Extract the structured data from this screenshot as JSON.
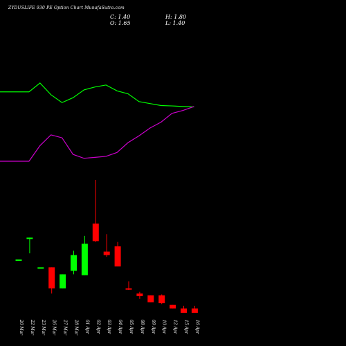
{
  "chart_header": {
    "title": "ZYDUSLIFE 930 PE Option Chart MunafaSutra.com",
    "close_text": "C: 1.40",
    "high_text": "H: 1.80",
    "open_text": "O: 1.65",
    "low_text": "L: 1.40"
  },
  "colors": {
    "background": "#000000",
    "up_candle": "#00ff00",
    "down_candle": "#ff0000",
    "green_line": "#00ff00",
    "purple_line": "#cc00cc",
    "text": "#ffffff"
  },
  "chart_data": {
    "type": "candlestick",
    "categories": [
      "20 Mar",
      "22 Mar",
      "23 Mar",
      "26 Mar",
      "27 Mar",
      "28 Mar",
      "01 Apr",
      "02 Apr",
      "03 Apr",
      "04 Apr",
      "05 Apr",
      "08 Apr",
      "09 Apr",
      "10 Apr",
      "12 Apr",
      "15 Apr",
      "16 Apr"
    ],
    "candles": [
      {
        "date": "20 Mar",
        "open": 4.45,
        "high": 4.45,
        "low": 4.45,
        "close": 4.45
      },
      {
        "date": "22 Mar",
        "open": 5.7,
        "high": 5.7,
        "low": 4.8,
        "close": 5.7
      },
      {
        "date": "23 Mar",
        "open": 4.0,
        "high": 4.0,
        "low": 4.0,
        "close": 4.0
      },
      {
        "date": "26 Mar",
        "open": 4.0,
        "high": 4.0,
        "low": 2.5,
        "close": 2.8
      },
      {
        "date": "27 Mar",
        "open": 2.8,
        "high": 3.6,
        "low": 2.8,
        "close": 3.6
      },
      {
        "date": "28 Mar",
        "open": 3.8,
        "high": 4.95,
        "low": 3.6,
        "close": 4.7
      },
      {
        "date": "01 Apr",
        "open": 3.55,
        "high": 5.8,
        "low": 3.55,
        "close": 5.35
      },
      {
        "date": "02 Apr",
        "open": 6.5,
        "high": 9.0,
        "low": 5.45,
        "close": 5.5
      },
      {
        "date": "03 Apr",
        "open": 4.9,
        "high": 5.9,
        "low": 4.6,
        "close": 4.7
      },
      {
        "date": "04 Apr",
        "open": 5.2,
        "high": 5.45,
        "low": 4.05,
        "close": 4.05
      },
      {
        "date": "05 Apr",
        "open": 2.8,
        "high": 3.2,
        "low": 2.7,
        "close": 2.75
      },
      {
        "date": "08 Apr",
        "open": 2.5,
        "high": 2.6,
        "low": 2.2,
        "close": 2.35
      },
      {
        "date": "09 Apr",
        "open": 2.4,
        "high": 2.4,
        "low": 2.0,
        "close": 2.0
      },
      {
        "date": "10 Apr",
        "open": 2.4,
        "high": 2.45,
        "low": 1.9,
        "close": 1.95
      },
      {
        "date": "12 Apr",
        "open": 1.85,
        "high": 1.85,
        "low": 1.65,
        "close": 1.65
      },
      {
        "date": "15 Apr",
        "open": 1.65,
        "high": 1.8,
        "low": 1.4,
        "close": 1.4
      },
      {
        "date": "16 Apr",
        "open": 1.65,
        "high": 1.8,
        "low": 1.4,
        "close": 1.4
      }
    ],
    "lines": [
      {
        "color": "green",
        "values": [
          3.15,
          3.15,
          3.6,
          3.0,
          2.6,
          2.85,
          3.25,
          3.4,
          3.5,
          3.2,
          3.05,
          2.65,
          2.55,
          2.45,
          2.43,
          2.4,
          2.38
        ]
      },
      {
        "color": "purple",
        "values": [
          -0.4,
          -0.4,
          0.4,
          0.95,
          0.8,
          -0.05,
          -0.25,
          -0.2,
          -0.15,
          0.05,
          0.55,
          0.9,
          1.3,
          1.6,
          2.05,
          2.2,
          2.4
        ]
      }
    ]
  }
}
